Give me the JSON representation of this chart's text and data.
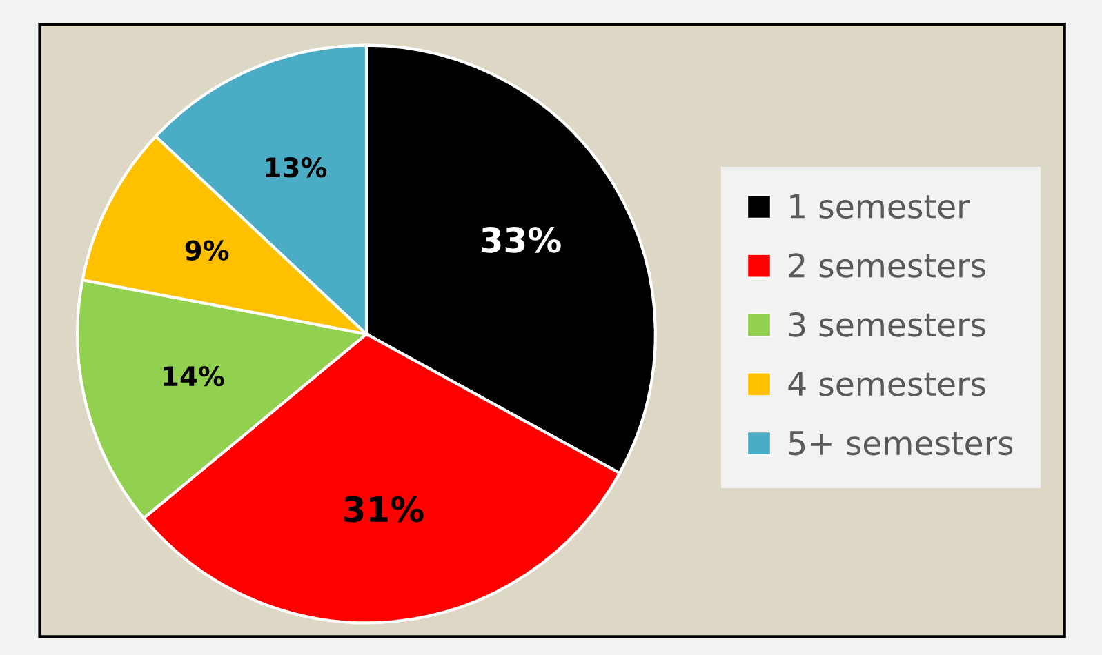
{
  "chart_data": {
    "type": "pie",
    "categories": [
      "1 semester",
      "2 semesters",
      "3 semesters",
      "4 semesters",
      "5+ semesters"
    ],
    "values": [
      33,
      31,
      14,
      9,
      13
    ],
    "colors": [
      "#000000",
      "#ff0000",
      "#92d050",
      "#ffc000",
      "#4bacc6"
    ],
    "value_labels": [
      "33%",
      "31%",
      "14%",
      "9%",
      "13%"
    ],
    "legend": "right"
  }
}
